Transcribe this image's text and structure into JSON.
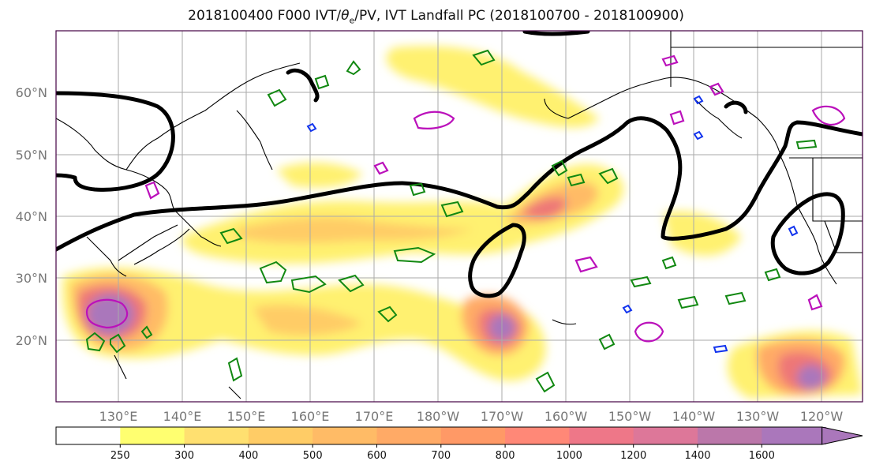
{
  "title_pre": "2018100400 F000 IVT/",
  "title_sym": "θ",
  "title_sub": "e",
  "title_post": "/PV, IVT Landfall PC (2018100700 - 2018100900)",
  "lat_labels": [
    "60°N",
    "50°N",
    "40°N",
    "30°N",
    "20°N"
  ],
  "lon_labels": [
    "130°E",
    "140°E",
    "150°E",
    "160°E",
    "170°E",
    "180°W",
    "170°W",
    "160°W",
    "150°W",
    "140°W",
    "130°W",
    "120°W"
  ],
  "colorbar": {
    "levels": [
      "250",
      "300",
      "400",
      "500",
      "600",
      "700",
      "800",
      "1000",
      "1200",
      "1400",
      "1600"
    ],
    "colors": [
      "#ffffff",
      "#ffff70",
      "#ffe070",
      "#ffcc66",
      "#ffbb66",
      "#ffaa66",
      "#ff9966",
      "#ff8877",
      "#ee7788",
      "#dd7799",
      "#bb77aa",
      "#aa77bb"
    ]
  },
  "colors": {
    "ivt_low": "#fff170",
    "ivt_mid": "#ffbb66",
    "ivt_high": "#ee7777",
    "ivt_core": "#aa77bb",
    "theta_e": "#000000",
    "pv_green": "#118811",
    "pv_magenta": "#bb11bb",
    "pv_blue": "#1133ee",
    "coast": "#000000",
    "grid": "#aaaaaa",
    "frame": "#440044"
  }
}
